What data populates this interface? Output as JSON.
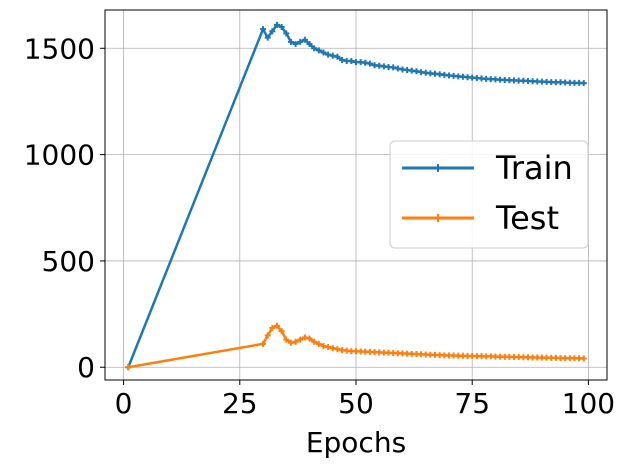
{
  "chart_data": {
    "type": "line",
    "title": "",
    "xlabel": "Epochs",
    "ylabel": "",
    "xlim": [
      -4,
      104
    ],
    "ylim": [
      -60,
      1680
    ],
    "xticks": [
      0,
      25,
      50,
      75,
      100
    ],
    "yticks": [
      0,
      500,
      1000,
      1500
    ],
    "grid": true,
    "legend_position": "center-right",
    "colors": {
      "Train": "#1f77b4",
      "Test": "#ff7f0e"
    },
    "series": [
      {
        "name": "Train",
        "marker": "plus",
        "x": [
          1,
          30,
          31,
          32,
          33,
          34,
          35,
          36,
          37,
          38,
          39,
          40,
          41,
          42,
          43,
          44,
          45,
          46,
          47,
          48,
          49,
          50,
          51,
          52,
          53,
          54,
          55,
          56,
          57,
          58,
          59,
          60,
          61,
          62,
          63,
          64,
          65,
          66,
          67,
          68,
          69,
          70,
          71,
          72,
          73,
          74,
          75,
          76,
          77,
          78,
          79,
          80,
          81,
          82,
          83,
          84,
          85,
          86,
          87,
          88,
          89,
          90,
          91,
          92,
          93,
          94,
          95,
          96,
          97,
          98,
          99
        ],
        "y": [
          0,
          1590,
          1550,
          1580,
          1610,
          1600,
          1570,
          1530,
          1520,
          1530,
          1540,
          1520,
          1500,
          1490,
          1480,
          1470,
          1465,
          1460,
          1445,
          1440,
          1440,
          1435,
          1435,
          1432,
          1428,
          1420,
          1418,
          1415,
          1412,
          1410,
          1405,
          1400,
          1398,
          1395,
          1392,
          1388,
          1385,
          1382,
          1380,
          1378,
          1375,
          1372,
          1370,
          1368,
          1366,
          1364,
          1362,
          1360,
          1358,
          1356,
          1355,
          1354,
          1352,
          1351,
          1350,
          1349,
          1348,
          1347,
          1346,
          1345,
          1344,
          1343,
          1342,
          1341,
          1340,
          1340,
          1339,
          1338,
          1337,
          1337,
          1336
        ]
      },
      {
        "name": "Test",
        "marker": "plus",
        "x": [
          1,
          30,
          31,
          32,
          33,
          34,
          35,
          36,
          37,
          38,
          39,
          40,
          41,
          42,
          43,
          44,
          45,
          46,
          47,
          48,
          49,
          50,
          51,
          52,
          53,
          54,
          55,
          56,
          57,
          58,
          59,
          60,
          61,
          62,
          63,
          64,
          65,
          66,
          67,
          68,
          69,
          70,
          71,
          72,
          73,
          74,
          75,
          76,
          77,
          78,
          79,
          80,
          81,
          82,
          83,
          84,
          85,
          86,
          87,
          88,
          89,
          90,
          91,
          92,
          93,
          94,
          95,
          96,
          97,
          98,
          99
        ],
        "y": [
          0,
          110,
          150,
          185,
          195,
          170,
          130,
          115,
          120,
          130,
          140,
          135,
          120,
          110,
          100,
          95,
          90,
          85,
          80,
          78,
          76,
          75,
          74,
          73,
          72,
          71,
          70,
          69,
          68,
          67,
          66,
          65,
          64,
          63,
          62,
          61,
          60,
          59,
          58,
          57,
          56,
          55,
          55,
          54,
          54,
          53,
          53,
          52,
          52,
          51,
          51,
          50,
          50,
          49,
          49,
          48,
          48,
          47,
          47,
          46,
          46,
          45,
          45,
          44,
          44,
          43,
          43,
          42,
          42,
          42,
          41
        ]
      }
    ]
  }
}
